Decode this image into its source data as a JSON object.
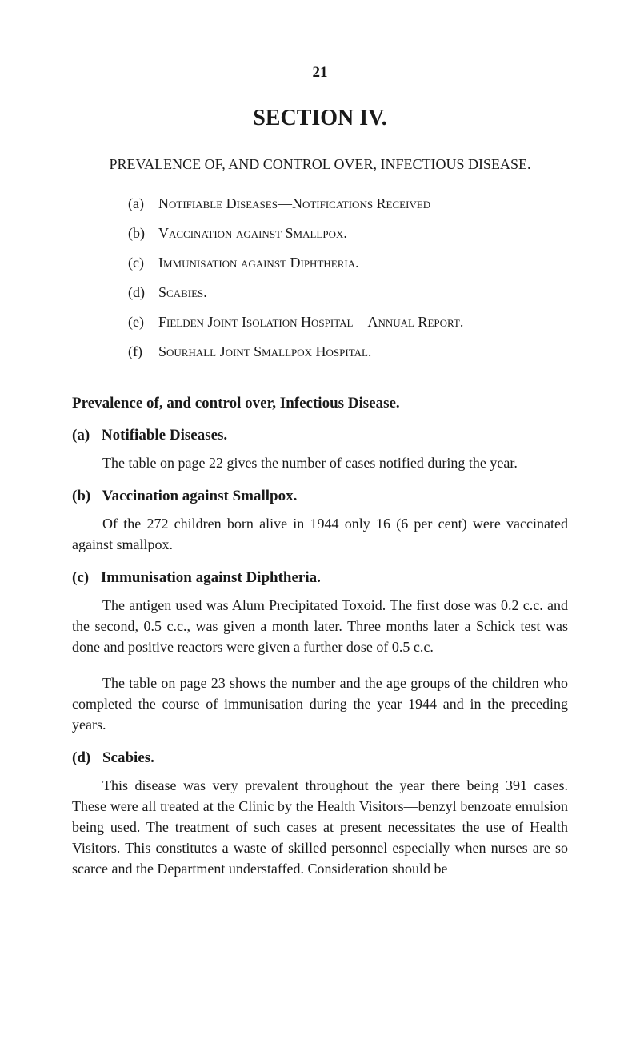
{
  "page": {
    "number": "21",
    "section_title": "SECTION IV.",
    "main_title": "PREVALENCE OF, AND CONTROL OVER, INFECTIOUS DISEASE."
  },
  "enum": {
    "a": {
      "label": "(a)",
      "text": "Notifiable Diseases—Notifications Received"
    },
    "b": {
      "label": "(b)",
      "text": "Vaccination against Smallpox."
    },
    "c": {
      "label": "(c)",
      "text": "Immunisation against Diphtheria."
    },
    "d": {
      "label": "(d)",
      "text": "Scabies."
    },
    "e": {
      "label": "(e)",
      "text": "Fielden Joint Isolation Hospital—Annual Report."
    },
    "f": {
      "label": "(f)",
      "text": "Sourhall Joint Smallpox Hospital."
    }
  },
  "subsection_title": "Prevalence of, and control over, Infectious Disease.",
  "blocks": {
    "a": {
      "label": "(a)",
      "heading": "Notifiable Diseases.",
      "paras": [
        "The table on page 22 gives the number of cases notified during the year."
      ]
    },
    "b": {
      "label": "(b)",
      "heading": "Vaccination against Smallpox.",
      "paras": [
        "Of the 272 children born alive in 1944 only 16 (6 per cent) were vaccinated against smallpox."
      ]
    },
    "c": {
      "label": "(c)",
      "heading": "Immunisation against Diphtheria.",
      "paras": [
        "The antigen used was Alum Precipitated Toxoid. The first dose was 0.2 c.c. and the second, 0.5 c.c., was given a month later. Three months later a Schick test was done and positive reactors were given a further dose of 0.5 c.c.",
        "The table on page 23 shows the number and the age groups of the children who completed the course of immunisation during the year 1944 and in the preceding years."
      ]
    },
    "d": {
      "label": "(d)",
      "heading": "Scabies.",
      "paras": [
        "This disease was very prevalent throughout the year there being 391 cases. These were all treated at the Clinic by the Health Visitors—benzyl benzoate emulsion being used. The treatment of such cases at present necessitates the use of Health Visitors. This constitutes a waste of skilled personnel especially when nurses are so scarce and the Department understaffed. Consideration should be"
      ]
    }
  },
  "colors": {
    "background": "#ffffff",
    "text": "#1a1a1a"
  },
  "typography": {
    "body_fontsize": 18,
    "title_fontsize": 28,
    "font_family": "Georgia, Times New Roman, serif"
  }
}
